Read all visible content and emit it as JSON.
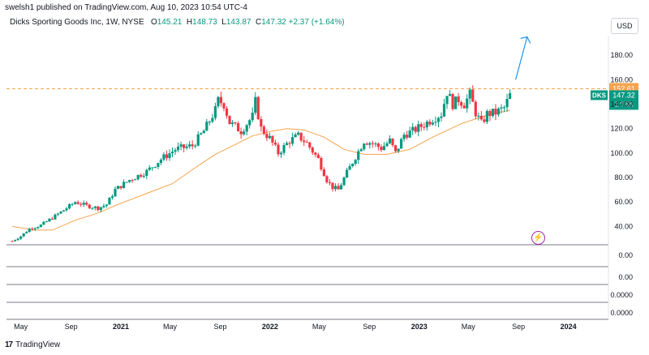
{
  "header": {
    "published": "swelsh1 published on TradingView.com, Aug 10, 2023 10:54 UTC-4",
    "symbol_line": "Dicks Sporting Goods Inc, 1W, NYSE",
    "ohlc": {
      "open_label": "O",
      "open": "145.21",
      "high_label": "H",
      "high": "148.73",
      "low_label": "L",
      "low": "143.87",
      "close_label": "C",
      "close": "147.32",
      "change": "+2.37 (+1.64%)"
    },
    "currency": "USD"
  },
  "footer": {
    "brand": "TradingView",
    "logo_mark": "17"
  },
  "colors": {
    "up": "#089981",
    "down": "#f23645",
    "ma": "#f7a34b",
    "resistance": "#f7a34b",
    "arrow": "#2196f3",
    "badge_teal": "#089981",
    "badge_orange": "#f7a34b",
    "pane_border": "#787b86"
  },
  "icons": {
    "event": "lightning-icon"
  },
  "chart_data": {
    "type": "candlestick",
    "title": "Dicks Sporting Goods Inc, 1W, NYSE",
    "interval": "1W",
    "x_ticks": [
      "May",
      "Sep",
      "2021",
      "May",
      "Sep",
      "2022",
      "May",
      "Sep",
      "2023",
      "May",
      "Sep",
      "2024"
    ],
    "y_ticks": [
      "180.00",
      "160.00",
      "140.00",
      "120.00",
      "100.00",
      "80.00",
      "60.00",
      "40.00"
    ],
    "ylim": [
      25,
      196
    ],
    "resistance": {
      "value": 152.61,
      "label": "152.61"
    },
    "last_price": {
      "symbol": "DKS",
      "value": 147.32,
      "label": "147.32",
      "countdown": "1d 6h"
    },
    "indicator_panes": [
      {
        "value_label": "0.00"
      },
      {
        "value_label": "0.00"
      },
      {
        "value_label": "0.0000"
      },
      {
        "value_label": "0.0000"
      }
    ],
    "anchors": [
      {
        "t": "2020-04-10",
        "v": 28
      },
      {
        "t": "2020-05-01",
        "v": 32
      },
      {
        "t": "2020-05-22",
        "v": 38
      },
      {
        "t": "2020-06-19",
        "v": 41
      },
      {
        "t": "2020-07-17",
        "v": 47
      },
      {
        "t": "2020-08-21",
        "v": 55
      },
      {
        "t": "2020-09-11",
        "v": 60
      },
      {
        "t": "2020-10-09",
        "v": 57
      },
      {
        "t": "2020-11-06",
        "v": 55
      },
      {
        "t": "2020-11-27",
        "v": 58
      },
      {
        "t": "2020-12-18",
        "v": 70
      },
      {
        "t": "2021-01-22",
        "v": 78
      },
      {
        "t": "2021-03-05",
        "v": 85
      },
      {
        "t": "2021-04-09",
        "v": 95
      },
      {
        "t": "2021-05-14",
        "v": 103
      },
      {
        "t": "2021-06-25",
        "v": 106
      },
      {
        "t": "2021-07-23",
        "v": 118
      },
      {
        "t": "2021-08-20",
        "v": 135
      },
      {
        "t": "2021-08-27",
        "v": 143
      },
      {
        "t": "2021-09-10",
        "v": 140
      },
      {
        "t": "2021-09-24",
        "v": 125
      },
      {
        "t": "2021-10-22",
        "v": 118
      },
      {
        "t": "2021-11-19",
        "v": 130
      },
      {
        "t": "2021-11-26",
        "v": 142
      },
      {
        "t": "2021-12-10",
        "v": 120
      },
      {
        "t": "2021-12-31",
        "v": 112
      },
      {
        "t": "2022-01-21",
        "v": 100
      },
      {
        "t": "2022-02-18",
        "v": 110
      },
      {
        "t": "2022-03-11",
        "v": 114
      },
      {
        "t": "2022-04-01",
        "v": 108
      },
      {
        "t": "2022-04-29",
        "v": 95
      },
      {
        "t": "2022-05-20",
        "v": 78
      },
      {
        "t": "2022-06-03",
        "v": 72
      },
      {
        "t": "2022-06-17",
        "v": 70
      },
      {
        "t": "2022-07-08",
        "v": 84
      },
      {
        "t": "2022-07-29",
        "v": 97
      },
      {
        "t": "2022-08-19",
        "v": 110
      },
      {
        "t": "2022-09-09",
        "v": 108
      },
      {
        "t": "2022-09-30",
        "v": 104
      },
      {
        "t": "2022-10-21",
        "v": 110
      },
      {
        "t": "2022-11-04",
        "v": 100
      },
      {
        "t": "2022-11-25",
        "v": 115
      },
      {
        "t": "2022-12-16",
        "v": 118
      },
      {
        "t": "2023-01-06",
        "v": 122
      },
      {
        "t": "2023-02-03",
        "v": 128
      },
      {
        "t": "2023-02-24",
        "v": 132
      },
      {
        "t": "2023-03-10",
        "v": 150
      },
      {
        "t": "2023-03-24",
        "v": 140
      },
      {
        "t": "2023-04-07",
        "v": 144
      },
      {
        "t": "2023-04-21",
        "v": 140
      },
      {
        "t": "2023-05-05",
        "v": 148
      },
      {
        "t": "2023-05-19",
        "v": 133
      },
      {
        "t": "2023-06-02",
        "v": 124
      },
      {
        "t": "2023-06-16",
        "v": 132
      },
      {
        "t": "2023-07-07",
        "v": 133
      },
      {
        "t": "2023-07-28",
        "v": 137
      },
      {
        "t": "2023-08-11",
        "v": 147.3
      }
    ],
    "ma_series": {
      "name": "Moving Average",
      "points": [
        {
          "t": "2020-04-10",
          "v": 40
        },
        {
          "t": "2020-06-05",
          "v": 37
        },
        {
          "t": "2020-07-17",
          "v": 37
        },
        {
          "t": "2020-09-11",
          "v": 45
        },
        {
          "t": "2020-11-06",
          "v": 51
        },
        {
          "t": "2020-12-25",
          "v": 58
        },
        {
          "t": "2021-03-05",
          "v": 67
        },
        {
          "t": "2021-05-07",
          "v": 75
        },
        {
          "t": "2021-07-02",
          "v": 88
        },
        {
          "t": "2021-08-20",
          "v": 99
        },
        {
          "t": "2021-10-08",
          "v": 107
        },
        {
          "t": "2021-11-19",
          "v": 114
        },
        {
          "t": "2022-01-07",
          "v": 118
        },
        {
          "t": "2022-02-11",
          "v": 120
        },
        {
          "t": "2022-03-25",
          "v": 119
        },
        {
          "t": "2022-05-13",
          "v": 113
        },
        {
          "t": "2022-07-01",
          "v": 103
        },
        {
          "t": "2022-08-19",
          "v": 99
        },
        {
          "t": "2022-10-14",
          "v": 99
        },
        {
          "t": "2022-12-09",
          "v": 103
        },
        {
          "t": "2023-02-03",
          "v": 113
        },
        {
          "t": "2023-04-14",
          "v": 124
        },
        {
          "t": "2023-06-16",
          "v": 131
        },
        {
          "t": "2023-08-11",
          "v": 135
        }
      ]
    },
    "projection_arrow": {
      "from": {
        "t": "2023-08-25",
        "v": 160
      },
      "to": {
        "t": "2023-09-22",
        "v": 195
      }
    }
  }
}
